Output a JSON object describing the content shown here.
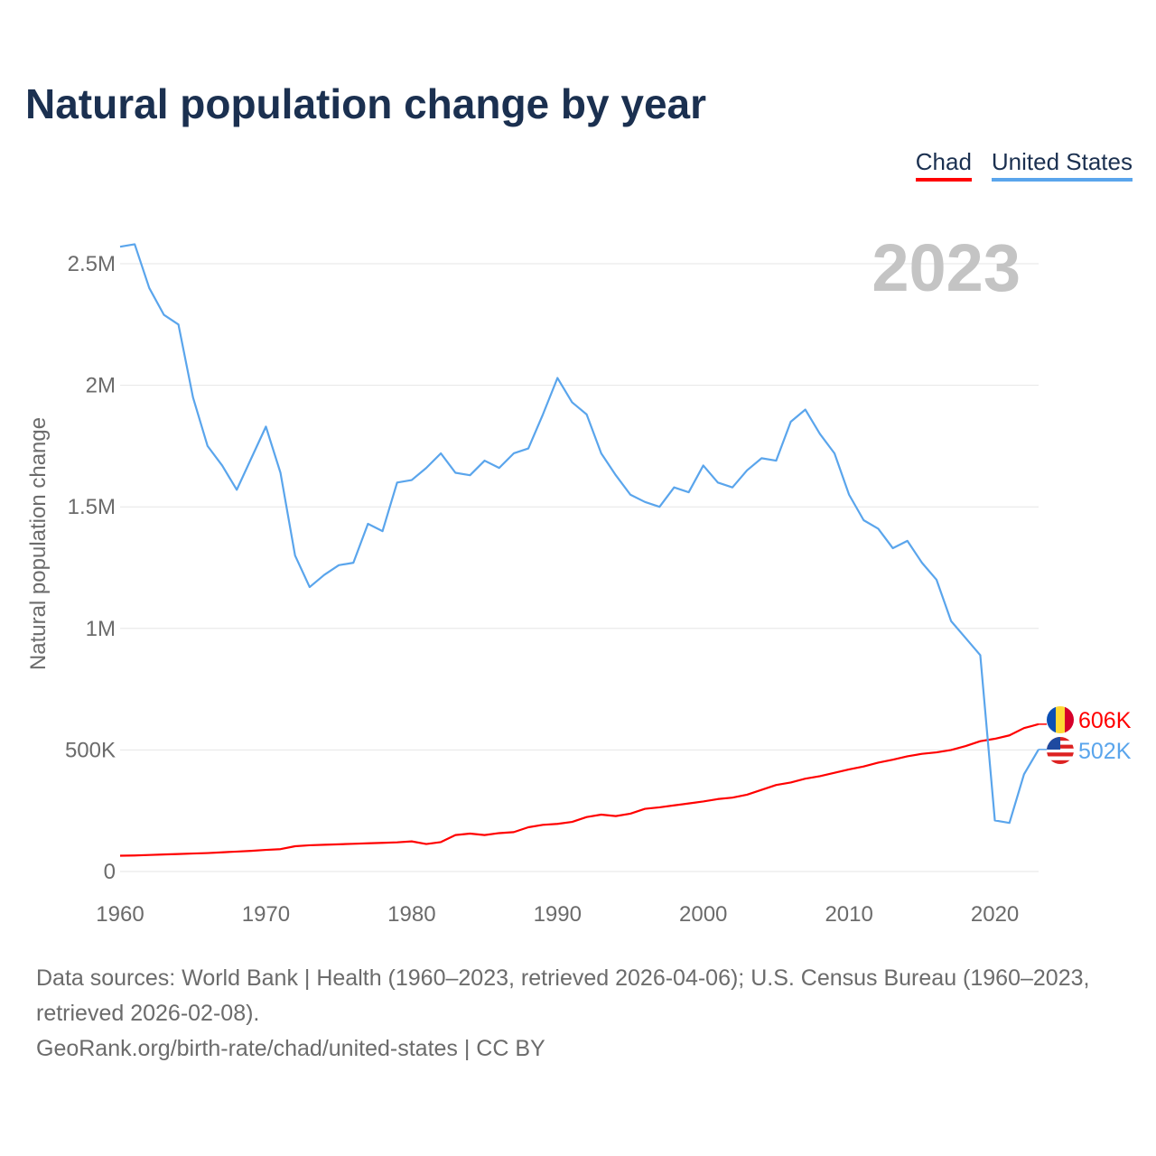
{
  "chart_data": {
    "type": "line",
    "title": "Natural population change by year",
    "xlabel": "",
    "ylabel": "Natural population change",
    "year_label": "2023",
    "xlim": [
      1960,
      2023
    ],
    "ylim": [
      0,
      2600000
    ],
    "grid": true,
    "legend_placement": "top-right",
    "x_ticks": [
      1960,
      1970,
      1980,
      1990,
      2000,
      2010,
      2020
    ],
    "y_ticks": [
      {
        "value": 0,
        "label": "0"
      },
      {
        "value": 500000,
        "label": "500K"
      },
      {
        "value": 1000000,
        "label": "1M"
      },
      {
        "value": 1500000,
        "label": "1.5M"
      },
      {
        "value": 2000000,
        "label": "2M"
      },
      {
        "value": 2500000,
        "label": "2.5M"
      }
    ],
    "x_start": 1960,
    "series": [
      {
        "name": "Chad",
        "color": "#ff0000",
        "end_label": "606K",
        "flag": "chad-flag",
        "values": [
          65000,
          66000,
          68000,
          70000,
          72000,
          74000,
          76000,
          79000,
          82000,
          85000,
          89000,
          92000,
          104000,
          108000,
          110000,
          112000,
          114000,
          116000,
          118000,
          120000,
          124000,
          113000,
          121000,
          150000,
          156000,
          150000,
          158000,
          162000,
          182000,
          192000,
          196000,
          204000,
          224000,
          234000,
          228000,
          238000,
          258000,
          264000,
          272000,
          280000,
          288000,
          298000,
          304000,
          316000,
          336000,
          356000,
          366000,
          382000,
          392000,
          406000,
          420000,
          432000,
          448000,
          460000,
          474000,
          484000,
          490000,
          500000,
          516000,
          536000,
          546000,
          560000,
          590000,
          606000
        ]
      },
      {
        "name": "United States",
        "color": "#5aa5ec",
        "end_label": "502K",
        "flag": "us-flag",
        "values": [
          2570000,
          2580000,
          2400000,
          2290000,
          2250000,
          1950000,
          1750000,
          1670000,
          1570000,
          1700000,
          1830000,
          1640000,
          1300000,
          1170000,
          1220000,
          1260000,
          1270000,
          1430000,
          1400000,
          1600000,
          1610000,
          1660000,
          1720000,
          1640000,
          1630000,
          1690000,
          1660000,
          1720000,
          1740000,
          1880000,
          2030000,
          1930000,
          1880000,
          1720000,
          1630000,
          1550000,
          1520000,
          1500000,
          1580000,
          1560000,
          1670000,
          1600000,
          1580000,
          1650000,
          1700000,
          1690000,
          1850000,
          1900000,
          1800000,
          1720000,
          1550000,
          1445000,
          1410000,
          1330000,
          1360000,
          1270000,
          1200000,
          1030000,
          960000,
          890000,
          210000,
          200000,
          400000,
          502000
        ]
      }
    ]
  },
  "source": {
    "line1": "Data sources: World Bank | Health (1960–2023, retrieved 2026-04-06); U.S. Census Bureau (1960–2023, retrieved 2026-02-08).",
    "line2": "GeoRank.org/birth-rate/chad/united-states | CC BY"
  }
}
